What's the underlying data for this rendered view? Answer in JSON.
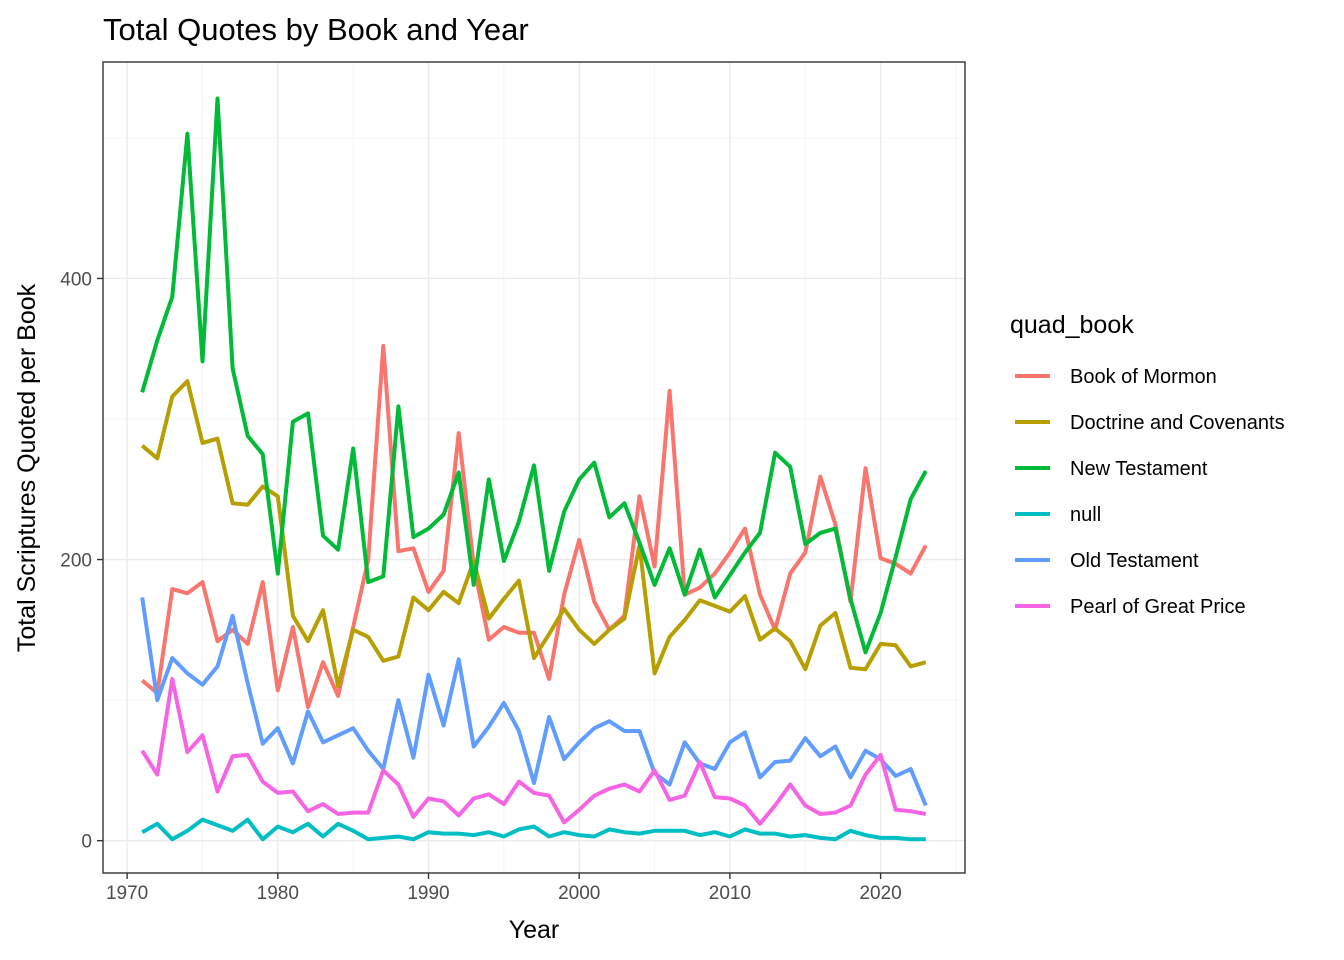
{
  "chart_data": {
    "type": "line",
    "title": "Total Quotes by Book and Year",
    "xlabel": "Year",
    "ylabel": "Total Scriptures Quoted per Book",
    "xlim": [
      1968.4,
      2025.6
    ],
    "ylim": [
      -23,
      554
    ],
    "x_ticks": [
      1970,
      1980,
      1990,
      2000,
      2010,
      2020
    ],
    "y_ticks": [
      0,
      200,
      400
    ],
    "grid": true,
    "legend": {
      "title": "quad_book",
      "position": "right"
    },
    "x": [
      1971,
      1972,
      1973,
      1974,
      1975,
      1976,
      1977,
      1978,
      1979,
      1980,
      1981,
      1982,
      1983,
      1984,
      1985,
      1986,
      1987,
      1988,
      1989,
      1990,
      1991,
      1992,
      1993,
      1994,
      1995,
      1996,
      1997,
      1998,
      1999,
      2000,
      2001,
      2002,
      2003,
      2004,
      2005,
      2006,
      2007,
      2008,
      2009,
      2010,
      2011,
      2012,
      2013,
      2014,
      2015,
      2016,
      2017,
      2018,
      2019,
      2020,
      2021,
      2022,
      2023
    ],
    "series": [
      {
        "name": "Book of Mormon",
        "color": "#F8766D",
        "values": [
          114,
          105,
          179,
          176,
          184,
          142,
          150,
          140,
          184,
          107,
          152,
          95,
          127,
          103,
          152,
          200,
          352,
          206,
          208,
          177,
          192,
          290,
          196,
          143,
          152,
          148,
          148,
          115,
          175,
          214,
          170,
          150,
          160,
          245,
          195,
          320,
          175,
          180,
          190,
          205,
          222,
          175,
          150,
          190,
          205,
          259,
          225,
          170,
          265,
          201,
          197,
          190,
          210
        ]
      },
      {
        "name": "Doctrine and Covenants",
        "color": "#B79F00",
        "values": [
          281,
          272,
          316,
          327,
          283,
          286,
          240,
          239,
          252,
          245,
          160,
          142,
          164,
          110,
          150,
          145,
          128,
          131,
          173,
          164,
          177,
          169,
          199,
          158,
          172,
          185,
          130,
          147,
          165,
          150,
          140,
          150,
          158,
          210,
          119,
          145,
          157,
          171,
          167,
          163,
          174,
          143,
          151,
          142,
          122,
          153,
          162,
          123,
          122,
          140,
          139,
          124,
          127
        ]
      },
      {
        "name": "New Testament",
        "color": "#00BA38",
        "values": [
          319,
          356,
          387,
          503,
          341,
          528,
          336,
          288,
          275,
          190,
          298,
          304,
          217,
          207,
          279,
          184,
          188,
          309,
          216,
          222,
          232,
          262,
          182,
          257,
          199,
          227,
          267,
          192,
          234,
          257,
          269,
          230,
          240,
          212,
          182,
          208,
          175,
          207,
          173,
          189,
          205,
          219,
          276,
          266,
          211,
          219,
          222,
          172,
          134,
          162,
          202,
          243,
          263
        ]
      },
      {
        "name": "null",
        "color": "#00BFC4",
        "values": [
          6,
          12,
          1,
          7,
          15,
          11,
          7,
          15,
          1,
          10,
          6,
          12,
          3,
          12,
          7,
          1,
          2,
          3,
          1,
          6,
          5,
          5,
          4,
          6,
          3,
          8,
          10,
          3,
          6,
          4,
          3,
          8,
          6,
          5,
          7,
          7,
          7,
          4,
          6,
          3,
          8,
          5,
          5,
          3,
          4,
          2,
          1,
          7,
          4,
          2,
          2,
          1,
          1
        ]
      },
      {
        "name": "Old Testament",
        "color": "#619CFF",
        "values": [
          173,
          100,
          130,
          119,
          111,
          124,
          160,
          112,
          69,
          80,
          55,
          92,
          70,
          75,
          80,
          64,
          51,
          100,
          59,
          118,
          82,
          129,
          67,
          81,
          98,
          78,
          41,
          88,
          58,
          70,
          80,
          85,
          78,
          78,
          48,
          40,
          70,
          55,
          51,
          70,
          77,
          45,
          56,
          57,
          73,
          60,
          67,
          45,
          64,
          58,
          46,
          51,
          25
        ]
      },
      {
        "name": "Pearl of Great Price",
        "color": "#F564E3",
        "values": [
          64,
          47,
          115,
          63,
          75,
          35,
          60,
          61,
          42,
          34,
          35,
          21,
          26,
          19,
          20,
          20,
          50,
          40,
          17,
          30,
          28,
          18,
          30,
          33,
          26,
          42,
          34,
          32,
          13,
          22,
          32,
          37,
          40,
          35,
          50,
          29,
          32,
          56,
          31,
          30,
          25,
          12,
          25,
          40,
          25,
          19,
          20,
          25,
          47,
          61,
          22,
          21,
          19
        ]
      }
    ]
  }
}
